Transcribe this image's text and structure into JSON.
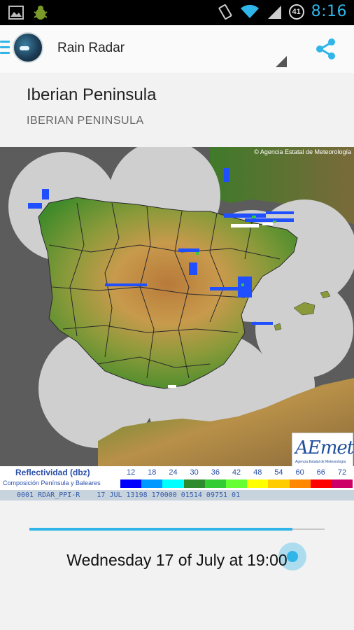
{
  "status_bar": {
    "time": "8:16",
    "battery_level": "41",
    "icons": [
      "gallery-icon",
      "android-bug-icon",
      "vibrate-icon",
      "wifi-icon",
      "signal-icon"
    ]
  },
  "app_bar": {
    "title": "Rain Radar",
    "accent_color": "#2fb5e8"
  },
  "header": {
    "region_title": "Iberian Peninsula",
    "region_subtitle": "IBERIAN PENINSULA"
  },
  "radar": {
    "copyright": "© Agencia Estatal de Meteorología",
    "logo_text": "AEmet",
    "logo_subtext": "Agencia Estatal de Meteorología",
    "legend": {
      "title": "Reflectividad (dbz)",
      "subtitle": "Composición Península y Baleares",
      "labels": [
        "12",
        "18",
        "24",
        "30",
        "36",
        "42",
        "48",
        "54",
        "60",
        "66",
        "72"
      ],
      "colors": [
        "#0000ff",
        "#0099ff",
        "#00ffff",
        "#2e8b2e",
        "#33cc33",
        "#66ff33",
        "#ffff00",
        "#ffcc00",
        "#ff8800",
        "#ff0000",
        "#cc0066"
      ]
    },
    "info_line": "0001 RDAR_PPI-R    17 JUL 13198 170000 01514 09751 01"
  },
  "timeline": {
    "progress": 0.89,
    "date_label": "Wednesday 17 of July at 19:00"
  }
}
